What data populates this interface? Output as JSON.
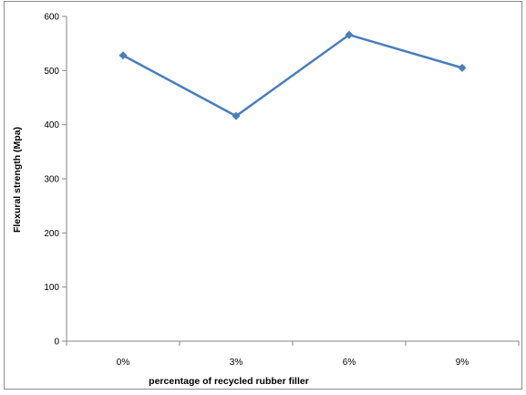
{
  "chart_data": {
    "type": "line",
    "title": "",
    "xlabel": "percentage of recycled rubber filler",
    "ylabel": "Flexural strength (Mpa)",
    "categories": [
      "0%",
      "3%",
      "6%",
      "9%"
    ],
    "series": [
      {
        "values": [
          528,
          416,
          566,
          505
        ],
        "color": "#4a7ebb",
        "marker": "diamond"
      }
    ],
    "ylim": [
      0,
      600
    ],
    "yticks": [
      0,
      100,
      200,
      300,
      400,
      500,
      600
    ],
    "grid": false,
    "legend": "none"
  }
}
